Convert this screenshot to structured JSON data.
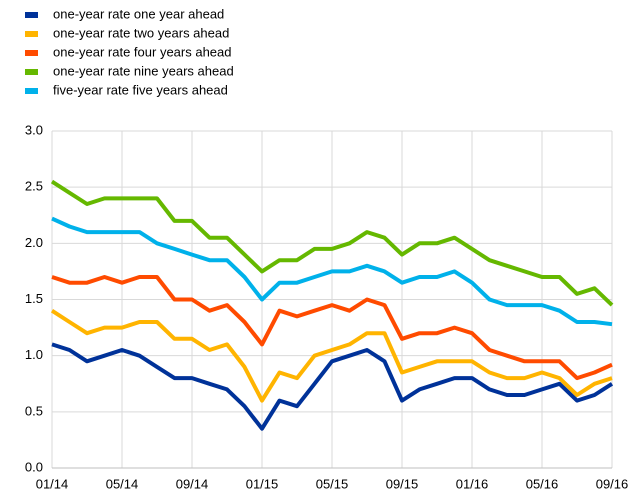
{
  "chart_data": {
    "type": "line",
    "categories": [
      "01/14",
      null,
      null,
      null,
      "05/14",
      null,
      null,
      null,
      "09/14",
      null,
      null,
      null,
      "01/15",
      null,
      null,
      null,
      "05/15",
      null,
      null,
      null,
      "09/15",
      null,
      null,
      null,
      "01/16",
      null,
      null,
      null,
      "05/16",
      null,
      null,
      null,
      "09/16"
    ],
    "series": [
      {
        "name": "one-year rate one year ahead",
        "color": "#003299",
        "values": [
          1.1,
          1.05,
          0.95,
          1.0,
          1.05,
          1.0,
          0.9,
          0.8,
          0.8,
          0.75,
          0.7,
          0.55,
          0.35,
          0.6,
          0.55,
          0.75,
          0.95,
          1.0,
          1.05,
          0.95,
          0.6,
          0.7,
          0.75,
          0.8,
          0.8,
          0.7,
          0.65,
          0.65,
          0.7,
          0.75,
          0.6,
          0.65,
          0.75
        ]
      },
      {
        "name": "one-year rate two years ahead",
        "color": "#ffb400",
        "values": [
          1.4,
          1.3,
          1.2,
          1.25,
          1.25,
          1.3,
          1.3,
          1.15,
          1.15,
          1.05,
          1.1,
          0.9,
          0.6,
          0.85,
          0.8,
          1.0,
          1.05,
          1.1,
          1.2,
          1.2,
          0.85,
          0.9,
          0.95,
          0.95,
          0.95,
          0.85,
          0.8,
          0.8,
          0.85,
          0.8,
          0.65,
          0.75,
          0.8
        ]
      },
      {
        "name": "one-year rate four years ahead",
        "color": "#ff4b00",
        "values": [
          1.7,
          1.65,
          1.65,
          1.7,
          1.65,
          1.7,
          1.7,
          1.5,
          1.5,
          1.4,
          1.45,
          1.3,
          1.1,
          1.4,
          1.35,
          1.4,
          1.45,
          1.4,
          1.5,
          1.45,
          1.15,
          1.2,
          1.2,
          1.25,
          1.2,
          1.05,
          1.0,
          0.95,
          0.95,
          0.95,
          0.8,
          0.85,
          0.92
        ]
      },
      {
        "name": "one-year rate nine years ahead",
        "color": "#65b800",
        "values": [
          2.55,
          2.45,
          2.35,
          2.4,
          2.4,
          2.4,
          2.4,
          2.2,
          2.2,
          2.05,
          2.05,
          1.9,
          1.75,
          1.85,
          1.85,
          1.95,
          1.95,
          2.0,
          2.1,
          2.05,
          1.9,
          2.0,
          2.0,
          2.05,
          1.95,
          1.85,
          1.8,
          1.75,
          1.7,
          1.7,
          1.55,
          1.6,
          1.45
        ]
      },
      {
        "name": "five-year rate five years ahead",
        "color": "#00b1ea",
        "values": [
          2.22,
          2.15,
          2.1,
          2.1,
          2.1,
          2.1,
          2.0,
          1.95,
          1.9,
          1.85,
          1.85,
          1.7,
          1.5,
          1.65,
          1.65,
          1.7,
          1.75,
          1.75,
          1.8,
          1.75,
          1.65,
          1.7,
          1.7,
          1.75,
          1.65,
          1.5,
          1.45,
          1.45,
          1.45,
          1.4,
          1.3,
          1.3,
          1.28
        ]
      }
    ],
    "ylim": [
      0,
      3
    ],
    "yticks": [
      {
        "value": 0,
        "label": "0.0"
      },
      {
        "value": 0.5,
        "label": "0.5"
      },
      {
        "value": 1,
        "label": "1.0"
      },
      {
        "value": 1.5,
        "label": "1.5"
      },
      {
        "value": 2,
        "label": "2.0"
      },
      {
        "value": 2.5,
        "label": "2.5"
      },
      {
        "value": 3,
        "label": "3.0"
      }
    ],
    "grid": true,
    "legend": "top-left"
  }
}
